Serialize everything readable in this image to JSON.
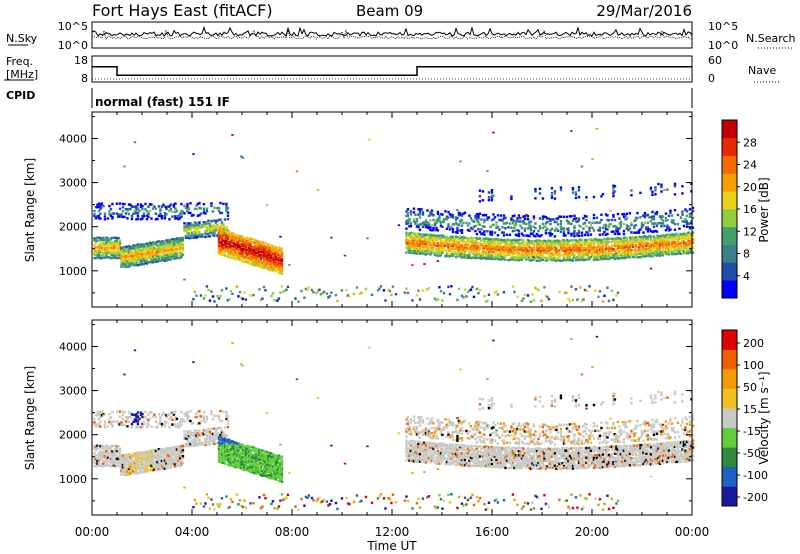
{
  "header": {
    "station": "Fort Hays East (fitACF)",
    "beam": "Beam 09",
    "date": "29/Mar/2016"
  },
  "noise_panel": {
    "left_label": "N.Sky",
    "right_label": "N.Search",
    "ticks": [
      "10^5",
      "10^0"
    ]
  },
  "freq_panel": {
    "left_label_line1": "Freq.",
    "left_label_line2": "[MHz]",
    "left_ticks": [
      "18",
      "8"
    ],
    "right_label": "Nave",
    "right_ticks": [
      "60",
      "0"
    ],
    "freq_steps": [
      {
        "t": 0.0,
        "mhz": 13.9
      },
      {
        "t": 1.0,
        "mhz": 10.6
      },
      {
        "t": 13.0,
        "mhz": 13.9
      },
      {
        "t": 24.0,
        "mhz": 13.9
      }
    ],
    "nave_level": 7
  },
  "cpid": {
    "label": "CPID",
    "value": "normal (fast) 151 IF"
  },
  "chart_data": [
    {
      "type": "heatmap",
      "quantity": "power",
      "ylabel": "Slant Range [km]",
      "xlabel": "",
      "xlim": [
        0,
        24
      ],
      "ylim": [
        180,
        4600
      ],
      "yticks": [
        "1000",
        "2000",
        "3000",
        "4000"
      ],
      "colorbar": {
        "label": "Power [dB]",
        "ticks": [
          "28",
          "24",
          "20",
          "16",
          "12",
          "8",
          "4"
        ],
        "range": [
          0,
          32
        ],
        "colors": [
          "#0000ff",
          "#1d4ea8",
          "#3a7f8c",
          "#44a06a",
          "#8fce3c",
          "#e8d21c",
          "#f5a000",
          "#f36a00",
          "#e62a00",
          "#c00000"
        ]
      }
    },
    {
      "type": "heatmap",
      "quantity": "velocity",
      "ylabel": "Slant Range [km]",
      "xlabel": "Time UT",
      "xlim": [
        0,
        24
      ],
      "ylim": [
        180,
        4600
      ],
      "yticks": [
        "1000",
        "2000",
        "3000",
        "4000"
      ],
      "xticks": [
        "00:00",
        "04:00",
        "08:00",
        "12:00",
        "16:00",
        "20:00",
        "00:00"
      ],
      "colorbar": {
        "label": "Velocity [m s⁻¹]",
        "ticks": [
          "200",
          "100",
          "50",
          "15",
          "-15",
          "-50",
          "-100",
          "-200"
        ],
        "colors": [
          "#1a1aa0",
          "#1f5fc8",
          "#2e8a3a",
          "#5fce3a",
          "#c8c8c4",
          "#f0c020",
          "#f59a00",
          "#f06000",
          "#e00000"
        ]
      }
    }
  ]
}
